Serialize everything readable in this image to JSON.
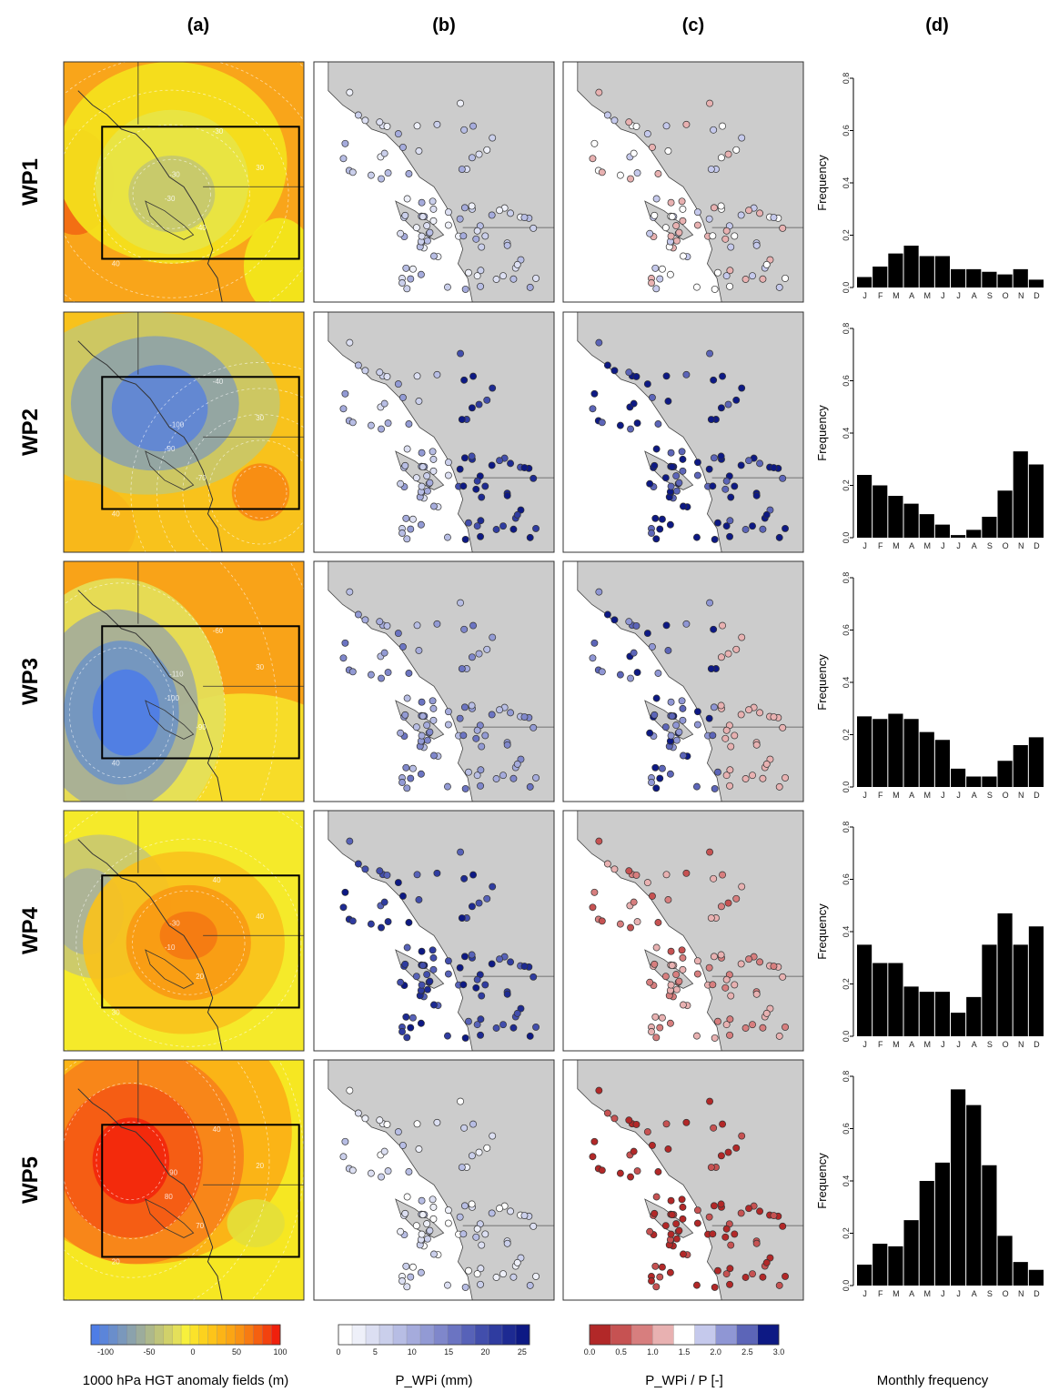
{
  "column_headers": [
    "(a)",
    "(b)",
    "(c)",
    "(d)"
  ],
  "row_labels": [
    "WP1",
    "WP2",
    "WP3",
    "WP4",
    "WP5"
  ],
  "colorbars": {
    "hgt": {
      "title": "1000 hPa HGT anomaly fields (m)",
      "ticks": [
        "-100",
        "-50",
        "0",
        "50",
        "100"
      ],
      "colors": [
        "#4e7de6",
        "#5b85da",
        "#6a8ecb",
        "#7a98bc",
        "#8ba2ac",
        "#9cac9c",
        "#adb88b",
        "#bfc47a",
        "#d1d16a",
        "#e4e05a",
        "#f7f03c",
        "#fbe22a",
        "#fcd21e",
        "#fdc419",
        "#fcb416",
        "#fba514",
        "#f99213",
        "#f77b12",
        "#f56010",
        "#f3420e",
        "#f0200c"
      ]
    },
    "precip": {
      "title": "P_WPi (mm)",
      "ticks": [
        "0",
        "5",
        "10",
        "15",
        "20",
        "25"
      ],
      "colors": [
        "#ffffff",
        "#eef0f9",
        "#dcdff2",
        "#cacfeb",
        "#b7bde4",
        "#a5abdc",
        "#929ad4",
        "#7f87cb",
        "#6b74c2",
        "#5762b8",
        "#424eac",
        "#2f3ca0",
        "#1d2a92",
        "#0d1984"
      ]
    },
    "ratio": {
      "title": "P_WPi / P [-]",
      "ticks": [
        "0.0",
        "0.5",
        "1.0",
        "1.5",
        "2.0",
        "2.5",
        "3.0"
      ],
      "colors": [
        "#b22828",
        "#c65252",
        "#d77e7e",
        "#e8b1b1",
        "#ffffff",
        "#c5c9ec",
        "#8f96d4",
        "#5c65b8",
        "#0d1984"
      ]
    }
  },
  "panel_a_contours": [
    [
      "-30",
      "-30",
      "-40",
      "-30",
      "30",
      "40"
    ],
    [
      "-100",
      "-90",
      "-70",
      "-40",
      "30",
      "40"
    ],
    [
      "-110",
      "-100",
      "-90",
      "-60",
      "30",
      "40"
    ],
    [
      "-30",
      "-10",
      "20",
      "40",
      "40",
      "30"
    ],
    [
      "90",
      "80",
      "70",
      "40",
      "20",
      "20"
    ]
  ],
  "chart_data": {
    "type": "bar",
    "xlabel": "Monthly frequency",
    "ylabel": "Frequency",
    "categories": [
      "J",
      "F",
      "M",
      "A",
      "M",
      "J",
      "J",
      "A",
      "S",
      "O",
      "N",
      "D"
    ],
    "ylim": [
      0,
      0.8
    ],
    "yticks": [
      "0.0",
      "0.2",
      "0.4",
      "0.6",
      "0.8"
    ],
    "series": [
      {
        "name": "WP1",
        "values": [
          0.04,
          0.08,
          0.13,
          0.16,
          0.12,
          0.12,
          0.07,
          0.07,
          0.06,
          0.05,
          0.07,
          0.03
        ]
      },
      {
        "name": "WP2",
        "values": [
          0.24,
          0.2,
          0.16,
          0.13,
          0.09,
          0.05,
          0.01,
          0.03,
          0.08,
          0.18,
          0.33,
          0.28
        ]
      },
      {
        "name": "WP3",
        "values": [
          0.27,
          0.26,
          0.28,
          0.26,
          0.21,
          0.18,
          0.07,
          0.04,
          0.04,
          0.1,
          0.16,
          0.19
        ]
      },
      {
        "name": "WP4",
        "values": [
          0.35,
          0.28,
          0.28,
          0.19,
          0.17,
          0.17,
          0.09,
          0.15,
          0.35,
          0.47,
          0.35,
          0.42
        ]
      },
      {
        "name": "WP5",
        "values": [
          0.08,
          0.16,
          0.15,
          0.25,
          0.4,
          0.47,
          0.75,
          0.69,
          0.46,
          0.19,
          0.09,
          0.06
        ]
      }
    ]
  },
  "station_maps": {
    "b_levels": [
      2,
      3,
      5,
      10,
      1
    ],
    "c_levels": [
      4,
      8,
      7,
      2,
      0
    ]
  }
}
